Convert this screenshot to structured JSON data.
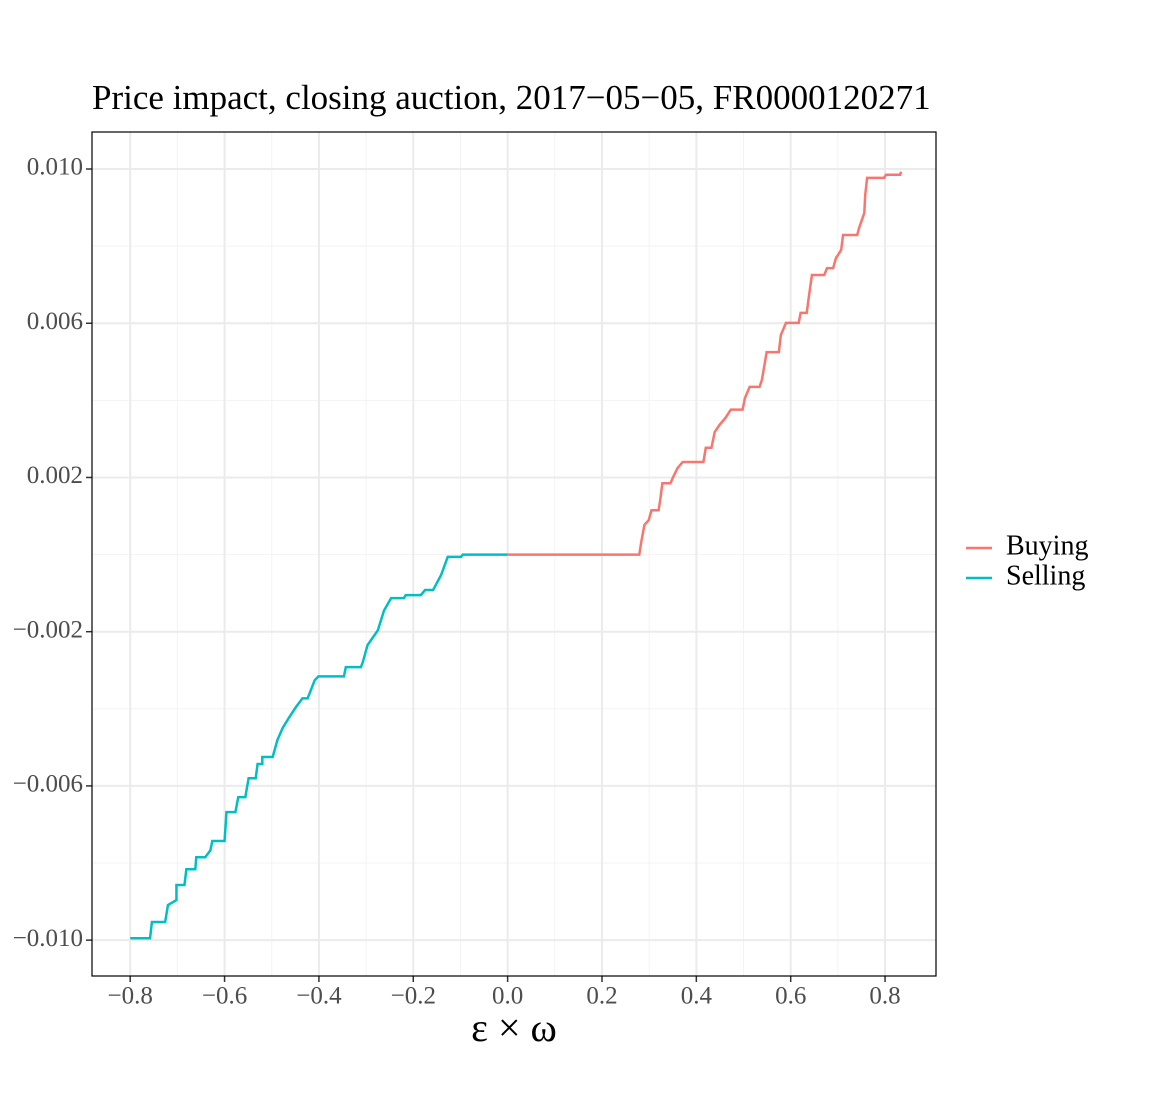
{
  "chart_data": {
    "type": "line",
    "title": "Price impact, closing auction, 2017−05−05, FR0000120271",
    "x_label": "ε × ω",
    "xlim": [
      -0.881,
      0.908
    ],
    "ylim": [
      -0.01093,
      0.01096
    ],
    "xticks": [
      {
        "value": -0.8,
        "label": "−0.8"
      },
      {
        "value": -0.6,
        "label": "−0.6"
      },
      {
        "value": -0.4,
        "label": "−0.4"
      },
      {
        "value": -0.2,
        "label": "−0.2"
      },
      {
        "value": 0,
        "label": "0.0"
      },
      0.2,
      0.4,
      0.6,
      0.8
    ],
    "yticks": [
      {
        "value": -0.01,
        "label": "−0.010"
      },
      {
        "value": -0.006,
        "label": "−0.006"
      },
      {
        "value": -0.002,
        "label": "−0.002"
      },
      0.002,
      0.006,
      {
        "value": 0.01,
        "label": "0.010"
      }
    ],
    "grid": true,
    "legend": "right",
    "series": [
      {
        "name": "Buying",
        "color": "#F8766D",
        "x": [
          0,
          0.279,
          0.284,
          0.29,
          0.299,
          0.305,
          0.32,
          0.324,
          0.328,
          0.345,
          0.352,
          0.36,
          0.371,
          0.415,
          0.42,
          0.432,
          0.439,
          0.449,
          0.462,
          0.473,
          0.498,
          0.503,
          0.513,
          0.534,
          0.539,
          0.549,
          0.575,
          0.579,
          0.59,
          0.617,
          0.621,
          0.634,
          0.639,
          0.645,
          0.671,
          0.677,
          0.69,
          0.696,
          0.707,
          0.711,
          0.741,
          0.745,
          0.756,
          0.758,
          0.762,
          0.798,
          0.802,
          0.832,
          0.834
        ],
        "values": [
          0,
          0,
          0.00038,
          0.00077,
          0.00089,
          0.00115,
          0.00115,
          0.00147,
          0.00185,
          0.00185,
          0.00204,
          0.00224,
          0.0024,
          0.0024,
          0.00277,
          0.00277,
          0.00318,
          0.00336,
          0.00355,
          0.00376,
          0.00376,
          0.00406,
          0.00435,
          0.00435,
          0.00453,
          0.00525,
          0.00525,
          0.00569,
          0.00601,
          0.00601,
          0.00627,
          0.00627,
          0.00673,
          0.00725,
          0.00725,
          0.00743,
          0.00743,
          0.00769,
          0.0079,
          0.00829,
          0.00829,
          0.00847,
          0.00886,
          0.00933,
          0.00977,
          0.00977,
          0.00985,
          0.00985,
          0.00993
        ]
      },
      {
        "name": "Selling",
        "color": "#00BFC4",
        "x": [
          -0.8,
          -0.758,
          -0.754,
          -0.726,
          -0.72,
          -0.702,
          -0.702,
          -0.685,
          -0.681,
          -0.662,
          -0.66,
          -0.641,
          -0.63,
          -0.626,
          -0.6,
          -0.596,
          -0.577,
          -0.571,
          -0.556,
          -0.549,
          -0.534,
          -0.53,
          -0.52,
          -0.52,
          -0.498,
          -0.488,
          -0.477,
          -0.464,
          -0.449,
          -0.435,
          -0.424,
          -0.409,
          -0.401,
          -0.347,
          -0.343,
          -0.311,
          -0.307,
          -0.297,
          -0.275,
          -0.262,
          -0.247,
          -0.22,
          -0.216,
          -0.184,
          -0.175,
          -0.158,
          -0.141,
          -0.127,
          -0.099,
          -0.095,
          0
        ],
        "values": [
          -0.00995,
          -0.00995,
          -0.00953,
          -0.00953,
          -0.00909,
          -0.00896,
          -0.00857,
          -0.00857,
          -0.00816,
          -0.00816,
          -0.00785,
          -0.00785,
          -0.00767,
          -0.00743,
          -0.00743,
          -0.00668,
          -0.00668,
          -0.00629,
          -0.00629,
          -0.0058,
          -0.0058,
          -0.00543,
          -0.00543,
          -0.00525,
          -0.00525,
          -0.00481,
          -0.0045,
          -0.00424,
          -0.00396,
          -0.00373,
          -0.00373,
          -0.00326,
          -0.00316,
          -0.00316,
          -0.00292,
          -0.00292,
          -0.00279,
          -0.00235,
          -0.00196,
          -0.00145,
          -0.00113,
          -0.00113,
          -0.00105,
          -0.00105,
          -0.00092,
          -0.00092,
          -0.00053,
          -6e-05,
          -6e-05,
          0,
          0
        ]
      }
    ]
  }
}
